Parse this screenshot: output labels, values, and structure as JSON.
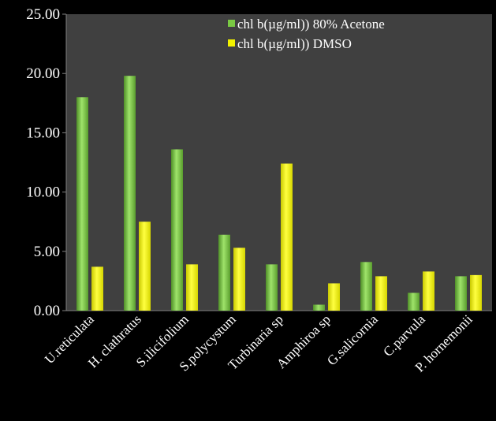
{
  "chart_data": {
    "type": "bar",
    "title": "",
    "xlabel": "",
    "ylabel": "",
    "ylim": [
      0,
      25
    ],
    "yticks": [
      "0.00",
      "5.00",
      "10.00",
      "15.00",
      "20.00",
      "25.00"
    ],
    "grid": false,
    "legend_position": "top-right",
    "categories": [
      "U.reticulata",
      "H. clathratus",
      "S.ilicifolium",
      "S.polycystum",
      "Turbinaria sp",
      "Amphiroa sp",
      "G.salicornia",
      "C.parvula",
      "P. hornemonii"
    ],
    "series": [
      {
        "name": "chl b(µg/ml)) 80% Acetone",
        "color": "#7ac943",
        "values": [
          18.0,
          19.8,
          13.6,
          6.4,
          3.9,
          0.5,
          4.1,
          1.5,
          2.9
        ]
      },
      {
        "name": "chl b(µg/ml)) DMSO",
        "color": "#f2f200",
        "values": [
          3.7,
          7.5,
          3.9,
          5.3,
          12.4,
          2.3,
          2.9,
          3.3,
          3.0
        ]
      }
    ],
    "plot_background": "#404040"
  }
}
